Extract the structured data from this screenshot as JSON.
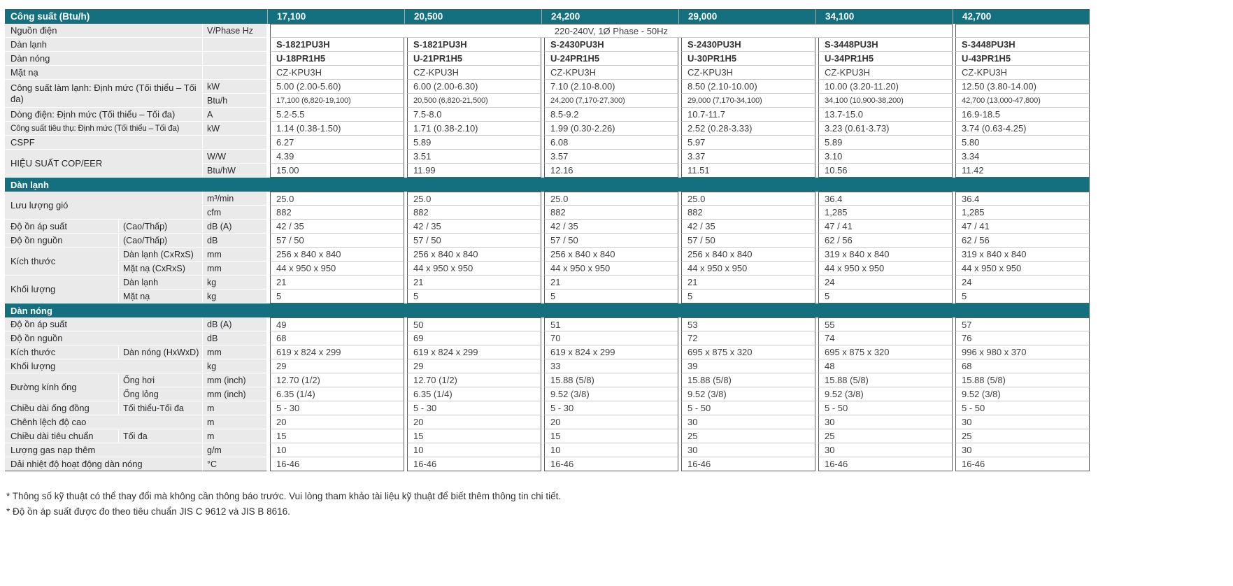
{
  "colors": {
    "teal": "#14707f",
    "label_bg": "#eaeaeb"
  },
  "header": {
    "label": "Công suất (Btu/h)",
    "columns": [
      "17,100",
      "20,500",
      "24,200",
      "29,000",
      "34,100",
      "42,700"
    ]
  },
  "table": {
    "rows": [
      {
        "type": "span",
        "label": "Nguồn điện",
        "unit": "V/Phase Hz",
        "value": "220-240V, 1Ø Phase - 50Hz",
        "span": 5
      },
      {
        "type": "data",
        "label": "Dàn lạnh",
        "unit": "",
        "bold": true,
        "values": [
          "S-1821PU3H",
          "S-1821PU3H",
          "S-2430PU3H",
          "S-2430PU3H",
          "S-3448PU3H",
          "S-3448PU3H"
        ]
      },
      {
        "type": "data",
        "label": "Dàn nóng",
        "unit": "",
        "bold": true,
        "values": [
          "U-18PR1H5",
          "U-21PR1H5",
          "U-24PR1H5",
          "U-30PR1H5",
          "U-34PR1H5",
          "U-43PR1H5"
        ]
      },
      {
        "type": "data",
        "label": "Mặt nạ",
        "unit": "",
        "values": [
          "CZ-KPU3H",
          "CZ-KPU3H",
          "CZ-KPU3H",
          "CZ-KPU3H",
          "CZ-KPU3H",
          "CZ-KPU3H"
        ]
      },
      {
        "type": "group",
        "label": "Công suất làm lạnh: Định mức (Tối thiểu – Tối đa)",
        "wide": true,
        "rows": [
          {
            "unit": "kW",
            "values": [
              "5.00 (2.00-5.60)",
              "6.00 (2.00-6.30)",
              "7.10 (2.10-8.00)",
              "8.50 (2.10-10.00)",
              "10.00 (3.20-11.20)",
              "12.50 (3.80-14.00)"
            ]
          },
          {
            "unit": "Btu/h",
            "small": true,
            "values": [
              "17,100 (6,820-19,100)",
              "20,500 (6,820-21,500)",
              "24,200 (7,170-27,300)",
              "29,000 (7,170-34,100)",
              "34,100 (10,900-38,200)",
              "42,700 (13,000-47,800)"
            ]
          }
        ]
      },
      {
        "type": "data",
        "label": "Dòng điện: Định mức (Tối thiểu – Tối đa)",
        "unit": "A",
        "values": [
          "5.2-5.5",
          "7.5-8.0",
          "8.5-9.2",
          "10.7-11.7",
          "13.7-15.0",
          "16.9-18.5"
        ]
      },
      {
        "type": "data",
        "label": "Công suất tiêu thụ: Định mức (Tối thiểu – Tối đa)",
        "label_small": true,
        "unit": "kW",
        "values": [
          "1.14 (0.38-1.50)",
          "1.71 (0.38-2.10)",
          "1.99 (0.30-2.26)",
          "2.52 (0.28-3.33)",
          "3.23 (0.61-3.73)",
          "3.74 (0.63-4.25)"
        ]
      },
      {
        "type": "data",
        "label": "CSPF",
        "unit": "",
        "values": [
          "6.27",
          "5.89",
          "6.08",
          "5.97",
          "5.89",
          "5.80"
        ]
      },
      {
        "type": "group",
        "label": "HIỆU SUẤT COP/EER",
        "wide": true,
        "rows": [
          {
            "unit": "W/W",
            "values": [
              "4.39",
              "3.51",
              "3.57",
              "3.37",
              "3.10",
              "3.34"
            ]
          },
          {
            "unit": "Btu/hW",
            "values": [
              "15.00",
              "11.99",
              "12.16",
              "11.51",
              "10.56",
              "11.42"
            ]
          }
        ]
      },
      {
        "type": "section",
        "label": "Dàn lạnh"
      },
      {
        "type": "group",
        "label": "Lưu lượng gió",
        "wide": true,
        "rows": [
          {
            "unit": "m³/min",
            "values": [
              "25.0",
              "25.0",
              "25.0",
              "25.0",
              "36.4",
              "36.4"
            ]
          },
          {
            "unit": "cfm",
            "values": [
              "882",
              "882",
              "882",
              "882",
              "1,285",
              "1,285"
            ]
          }
        ]
      },
      {
        "type": "data",
        "label": "Độ ồn áp suất",
        "sub": "(Cao/Thấp)",
        "unit": "dB (A)",
        "values": [
          "42 / 35",
          "42 / 35",
          "42 / 35",
          "42 / 35",
          "47 / 41",
          "47 / 41"
        ]
      },
      {
        "type": "data",
        "label": "Độ ồn nguồn",
        "sub": "(Cao/Thấp)",
        "unit": "dB",
        "values": [
          "57 / 50",
          "57 / 50",
          "57 / 50",
          "57 / 50",
          "62 / 56",
          "62 / 56"
        ]
      },
      {
        "type": "group",
        "label": "Kích thước",
        "rows": [
          {
            "sub": "Dàn lạnh (CxRxS)",
            "unit": "mm",
            "values": [
              "256 x 840 x 840",
              "256 x 840 x 840",
              "256 x 840 x 840",
              "256 x 840 x 840",
              "319 x 840 x 840",
              "319 x 840 x 840"
            ]
          },
          {
            "sub": "Mặt nạ (CxRxS)",
            "unit": "mm",
            "values": [
              "44 x 950 x 950",
              "44 x 950 x 950",
              "44 x 950 x 950",
              "44 x 950 x 950",
              "44 x 950 x 950",
              "44 x 950 x 950"
            ]
          }
        ]
      },
      {
        "type": "group",
        "label": "Khối lượng",
        "rows": [
          {
            "sub": "Dàn lạnh",
            "unit": "kg",
            "values": [
              "21",
              "21",
              "21",
              "21",
              "24",
              "24"
            ]
          },
          {
            "sub": "Mặt nạ",
            "unit": "kg",
            "values": [
              "5",
              "5",
              "5",
              "5",
              "5",
              "5"
            ]
          }
        ]
      },
      {
        "type": "section",
        "label": "Dàn nóng"
      },
      {
        "type": "data",
        "label": "Độ ồn áp suất",
        "unit": "dB (A)",
        "values": [
          "49",
          "50",
          "51",
          "53",
          "55",
          "57"
        ]
      },
      {
        "type": "data",
        "label": "Độ ồn nguồn",
        "unit": "dB",
        "values": [
          "68",
          "69",
          "70",
          "72",
          "74",
          "76"
        ]
      },
      {
        "type": "data",
        "label": "Kích thước",
        "sub": "Dàn nóng (HxWxD)",
        "unit": "mm",
        "values": [
          "619 x 824 x 299",
          "619 x 824 x 299",
          "619 x 824 x 299",
          "695 x 875 x 320",
          "695 x 875 x 320",
          "996 x 980 x 370"
        ]
      },
      {
        "type": "data",
        "label": "Khối lượng",
        "unit": "kg",
        "values": [
          "29",
          "29",
          "33",
          "39",
          "48",
          "68"
        ]
      },
      {
        "type": "group",
        "label": "Đường kính ống",
        "rows": [
          {
            "sub": "Ống hơi",
            "unit": "mm (inch)",
            "values": [
              "12.70 (1/2)",
              "12.70 (1/2)",
              "15.88 (5/8)",
              "15.88 (5/8)",
              "15.88 (5/8)",
              "15.88 (5/8)"
            ]
          },
          {
            "sub": "Ống lỏng",
            "unit": "mm (inch)",
            "values": [
              "6.35 (1/4)",
              "6.35 (1/4)",
              "9.52 (3/8)",
              "9.52 (3/8)",
              "9.52 (3/8)",
              "9.52 (3/8)"
            ]
          }
        ]
      },
      {
        "type": "data",
        "label": "Chiều dài ống đồng",
        "sub": "Tối thiểu-Tối đa",
        "unit": "m",
        "values": [
          "5 - 30",
          "5 - 30",
          "5 - 30",
          "5 - 50",
          "5 - 50",
          "5 - 50"
        ]
      },
      {
        "type": "data",
        "label": "Chênh lệch độ cao",
        "unit": "m",
        "values": [
          "20",
          "20",
          "20",
          "30",
          "30",
          "30"
        ]
      },
      {
        "type": "data",
        "label": "Chiều dài tiêu chuẩn",
        "sub": "Tối đa",
        "unit": "m",
        "values": [
          "15",
          "15",
          "15",
          "25",
          "25",
          "25"
        ]
      },
      {
        "type": "data",
        "label": "Lượng gas nạp thêm",
        "unit": "g/m",
        "values": [
          "10",
          "10",
          "10",
          "30",
          "30",
          "30"
        ]
      },
      {
        "type": "data",
        "label": "Dải nhiệt độ hoạt động dàn nóng",
        "unit": "°C",
        "values": [
          "16-46",
          "16-46",
          "16-46",
          "16-46",
          "16-46",
          "16-46"
        ]
      }
    ]
  },
  "footnotes": [
    "* Thông số kỹ thuật có thể thay đổi mà không cần thông báo trước. Vui lòng tham khảo tài liệu kỹ thuật để biết thêm thông tin chi tiết.",
    "* Độ ồn áp suất được đo theo tiêu chuẩn JIS C 9612 và JIS B 8616."
  ]
}
